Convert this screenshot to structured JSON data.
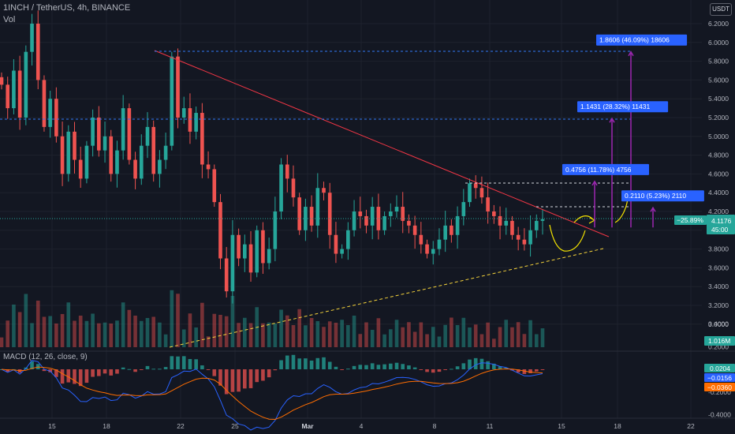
{
  "header": {
    "symbol_line": "1INCH / TetherUS, 4h, BINANCE",
    "vol_label": "Vol",
    "currency_button": "USDT",
    "macd_label": "MACD (12, 26, close, 9)"
  },
  "colors": {
    "background": "#131722",
    "up": "#26a69a",
    "down": "#ef5350",
    "macd_line": "#2962ff",
    "signal_line": "#ff6d00",
    "trendline": "#f23645",
    "support": "#f5d33b",
    "resistance_dash": "#3179f5",
    "target_box": "#2962ff",
    "arrow": "#9c27b0",
    "projection": "#f5e400"
  },
  "price_axis": {
    "ticks": [
      "6.2000",
      "6.0000",
      "5.8000",
      "5.6000",
      "5.4000",
      "5.2000",
      "5.0000",
      "4.8000",
      "4.6000",
      "4.4000",
      "4.2000",
      "4.0000",
      "3.8000",
      "3.6000",
      "3.4000",
      "3.2000",
      "3.0000"
    ],
    "last_price": "4.1176",
    "countdown": "45:00",
    "change_pct": "−25.89%",
    "volume_badge": "1.016M"
  },
  "macd_axis": {
    "ticks": [
      "0.4000",
      "0.2000",
      "-0.2000",
      "-0.4000"
    ],
    "hist_badge": "0.0204",
    "macd_badge": "−0.0156",
    "signal_badge": "−0.0360"
  },
  "time_axis": {
    "ticks": [
      "15",
      "18",
      "22",
      "25",
      "Mar",
      "4",
      "8",
      "11",
      "15",
      "18",
      "22"
    ]
  },
  "chart_data": {
    "type": "candlestick",
    "title": "1INCH / TetherUS, 4h, BINANCE",
    "ylim": [
      2.85,
      6.3
    ],
    "price_series": [
      5.55,
      5.3,
      5.7,
      5.2,
      5.9,
      6.2,
      5.6,
      5.1,
      5.4,
      5.0,
      4.6,
      5.05,
      4.75,
      4.55,
      4.9,
      5.2,
      4.85,
      5.0,
      4.6,
      4.85,
      5.3,
      4.75,
      4.55,
      4.9,
      5.1,
      4.6,
      4.75,
      4.9,
      5.85,
      5.2,
      5.3,
      5.05,
      5.25,
      4.7,
      4.65,
      4.3,
      3.7,
      3.35,
      3.95,
      3.7,
      3.85,
      3.55,
      4.0,
      3.65,
      3.8,
      4.2,
      4.7,
      4.55,
      4.35,
      4.0,
      4.25,
      4.05,
      4.45,
      4.4,
      3.95,
      3.75,
      3.8,
      4.0,
      4.2,
      4.15,
      4.05,
      4.25,
      4.0,
      4.15,
      4.2,
      4.25,
      4.1,
      4.05,
      3.95,
      3.85,
      3.75,
      3.8,
      3.9,
      4.05,
      3.95,
      4.15,
      4.3,
      4.5,
      4.45,
      4.35,
      4.2,
      4.15,
      4.05,
      4.1,
      3.95,
      3.9,
      3.85,
      4.0,
      4.1,
      4.1176
    ],
    "annotations": [
      {
        "label": "1.8606 (46.09%) 18606",
        "from": 4.03,
        "to": 5.9
      },
      {
        "label": "1.1431 (28.32%) 11431",
        "from": 4.03,
        "to": 5.19
      },
      {
        "label": "0.4756 (11.78%) 4756",
        "from": 4.03,
        "to": 4.52
      },
      {
        "label": "0.2110 (5.23%) 2110",
        "from": 4.03,
        "to": 4.24
      }
    ],
    "macd": {
      "hist_last": 0.0204,
      "macd_last": -0.0156,
      "signal_last": -0.036
    }
  }
}
